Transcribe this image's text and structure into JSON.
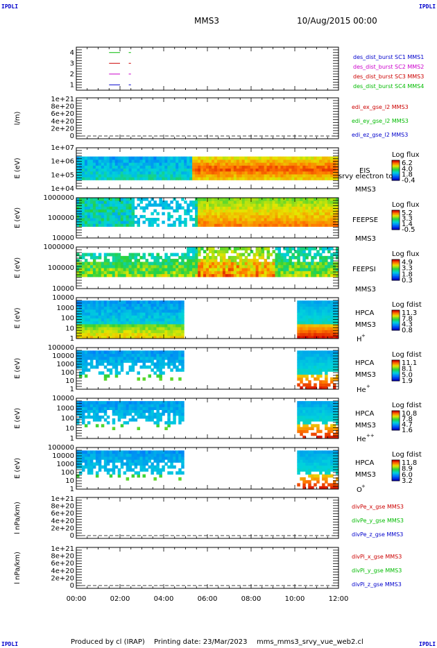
{
  "corners": {
    "top_left": "IPDLI",
    "top_right": "IPDLI",
    "bottom_left": "IPDLI",
    "bottom_right": "IPDLI"
  },
  "header": {
    "spacecraft": "MMS3",
    "date": "10/Aug/2015 00:00"
  },
  "footer": {
    "produced_by": "Produced by  cl (IRAP)",
    "printing_date": "Printing date: 23/Mar/2023",
    "file": "mms_mms3_srvy_vue_web2.cl"
  },
  "colors": {
    "blue": "#0000cc",
    "red": "#cc0000",
    "green": "#00bb00",
    "magenta": "#cc00cc"
  },
  "x_axis": {
    "ticks": [
      "00:00",
      "02:00",
      "04:00",
      "06:00",
      "08:00",
      "10:00",
      "12:00"
    ],
    "range_hours": [
      0,
      12
    ]
  },
  "chart_data": [
    {
      "type": "line",
      "id": "burst",
      "yticks": [
        "1",
        "2",
        "3",
        "4"
      ],
      "ylim": [
        0.5,
        4.5
      ],
      "legend": [
        {
          "name": "des_dist_burst SC1 MMS1",
          "color": "#0000cc"
        },
        {
          "name": "des_dist_burst SC2 MMS2",
          "color": "#cc00cc"
        },
        {
          "name": "des_dist_burst SC3 MMS3",
          "color": "#cc0000"
        },
        {
          "name": "des_dist_burst SC4 MMS4",
          "color": "#00bb00"
        }
      ],
      "series": [
        {
          "y": 4,
          "color": "#00bb00",
          "x": [
            1.5,
            2.0,
            2.4,
            2.5
          ]
        },
        {
          "y": 3,
          "color": "#cc0000",
          "x": [
            1.5,
            2.0,
            2.4,
            2.5
          ]
        },
        {
          "y": 2,
          "color": "#cc00cc",
          "x": [
            1.5,
            2.0,
            2.4,
            2.5
          ]
        },
        {
          "y": 1,
          "color": "#0000cc",
          "x": [
            1.5,
            2.0,
            2.4,
            2.5
          ]
        }
      ]
    },
    {
      "type": "line",
      "id": "edi",
      "ylabel": "l/m)",
      "yticks": [
        "0",
        "2e+20",
        "4e+20",
        "6e+20",
        "8e+20",
        "1e+21"
      ],
      "dashed_zero": true,
      "legend": [
        {
          "name": "edi_ex_gse_l2 MMS3",
          "color": "#cc0000"
        },
        {
          "name": "edi_ey_gse_l2 MMS3",
          "color": "#00bb00"
        },
        {
          "name": "edi_ez_gse_l2 MMS3",
          "color": "#0000cc"
        }
      ]
    },
    {
      "type": "heatmap",
      "id": "eis",
      "ylabel": "E (eV)",
      "yticks": [
        "1e+04",
        "1e+05",
        "1e+06",
        "1e+07"
      ],
      "labels": [
        "EIS",
        "MMS3"
      ],
      "overlay": "srvy electron to",
      "cbar_title": "Log flux",
      "cbar_ticks": [
        "6.2",
        "4.0",
        "1.8",
        "-0.4"
      ]
    },
    {
      "type": "heatmap",
      "id": "feepse",
      "ylabel": "E (eV)",
      "yticks": [
        "10000",
        "100000",
        "1000000"
      ],
      "labels": [
        "FEEPSE",
        "MMS3"
      ],
      "cbar_title": "Log flux",
      "cbar_ticks": [
        "5.2",
        "3.3",
        "1.4",
        "-0.5"
      ]
    },
    {
      "type": "heatmap",
      "id": "feepsi",
      "ylabel": "E (eV)",
      "yticks": [
        "10000",
        "100000",
        "1000000"
      ],
      "labels": [
        "FEEPSI",
        "MMS3"
      ],
      "cbar_title": "Log flux",
      "cbar_ticks": [
        "4.9",
        "3.3",
        "1.8",
        "0.3"
      ]
    },
    {
      "type": "heatmap",
      "id": "hpca_h",
      "ylabel": "E (eV)",
      "yticks": [
        "1",
        "10",
        "100",
        "1000",
        "10000"
      ],
      "labels": [
        "HPCA",
        "MMS3",
        "H"
      ],
      "ion_sup": "+",
      "cbar_title": "Log fdist",
      "cbar_ticks": [
        "11.3",
        "7.8",
        "4.3",
        "0.8"
      ]
    },
    {
      "type": "heatmap",
      "id": "hpca_he",
      "ylabel": "E (eV)",
      "yticks": [
        "1",
        "10",
        "100",
        "1000",
        "10000",
        "100000"
      ],
      "labels": [
        "HPCA",
        "MMS3",
        "He"
      ],
      "ion_sup": "+",
      "cbar_title": "Log fdist",
      "cbar_ticks": [
        "11.1",
        "8.1",
        "5.0",
        "1.9"
      ]
    },
    {
      "type": "heatmap",
      "id": "hpca_hepp",
      "ylabel": "E (eV)",
      "yticks": [
        "1",
        "10",
        "100",
        "1000",
        "10000"
      ],
      "labels": [
        "HPCA",
        "MMS3",
        "He"
      ],
      "ion_sup": "++",
      "cbar_title": "Log fdist",
      "cbar_ticks": [
        "10.8",
        "7.8",
        "4.7",
        "1.6"
      ]
    },
    {
      "type": "heatmap",
      "id": "hpca_o",
      "ylabel": "E (eV)",
      "yticks": [
        "1",
        "10",
        "100",
        "1000",
        "10000",
        "100000"
      ],
      "labels": [
        "HPCA",
        "MMS3",
        "O"
      ],
      "ion_sup": "+",
      "cbar_title": "Log fdist",
      "cbar_ticks": [
        "11.8",
        "8.9",
        "6.0",
        "3.2"
      ]
    },
    {
      "type": "line",
      "id": "divpe",
      "ylabel": "l nPa/km)",
      "yticks": [
        "0",
        "2e+20",
        "4e+20",
        "6e+20",
        "8e+20",
        "1e+21"
      ],
      "dashed_zero": true,
      "legend": [
        {
          "name": "divPe_x_gse MMS3",
          "color": "#cc0000"
        },
        {
          "name": "divPe_y_gse MMS3",
          "color": "#00bb00"
        },
        {
          "name": "divPe_z_gse MMS3",
          "color": "#0000cc"
        }
      ]
    },
    {
      "type": "line",
      "id": "divpi",
      "ylabel": "l nPa/km)",
      "yticks": [
        "0",
        "2e+20",
        "4e+20",
        "6e+20",
        "8e+20",
        "1e+21"
      ],
      "dashed_zero": true,
      "legend": [
        {
          "name": "divPi_x_gse MMS3",
          "color": "#cc0000"
        },
        {
          "name": "divPi_y_gse MMS3",
          "color": "#00bb00"
        },
        {
          "name": "divPi_z_gse MMS3",
          "color": "#0000cc"
        }
      ]
    }
  ]
}
